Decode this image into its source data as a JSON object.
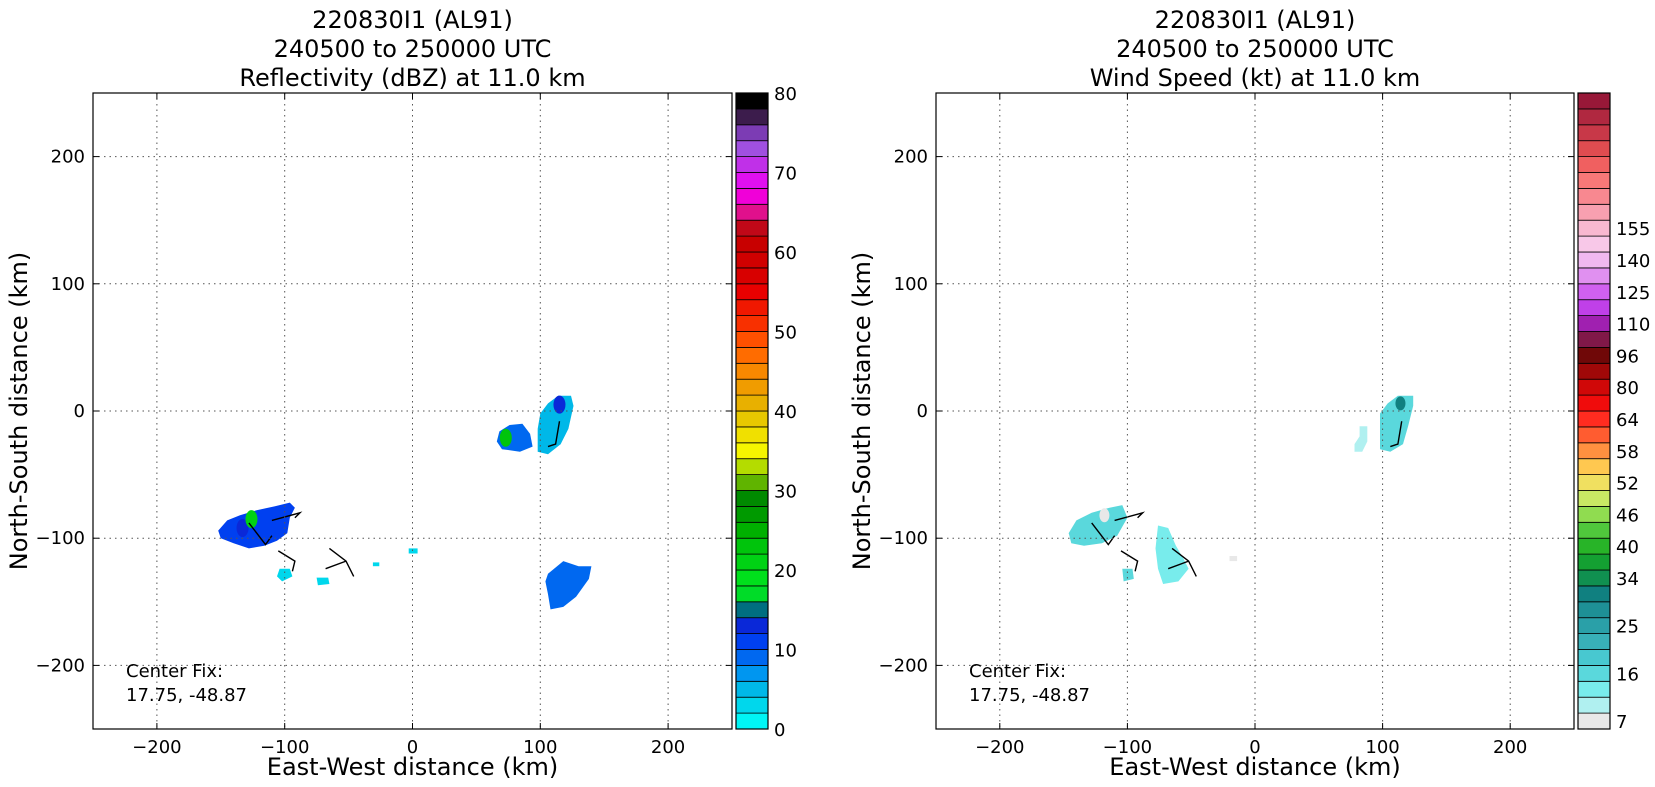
{
  "chart_data": [
    {
      "type": "heatmap",
      "title": [
        "220830I1 (AL91)",
        "240500 to 250000 UTC",
        "Reflectivity (dBZ) at 11.0 km"
      ],
      "xlabel": "East-West distance (km)",
      "ylabel": "North-South distance (km)",
      "xlim": [
        -250,
        250
      ],
      "ylim": [
        -250,
        250
      ],
      "x_ticks": [
        -200,
        -100,
        0,
        100,
        200
      ],
      "y_ticks": [
        -200,
        -100,
        0,
        100,
        200
      ],
      "x_tick_labels": [
        "−200",
        "−100",
        "0",
        "100",
        "200"
      ],
      "y_tick_labels": [
        "−200",
        "−100",
        "0",
        "100",
        "200"
      ],
      "grid": true,
      "annotation": [
        "Center Fix:",
        "17.75, -48.87"
      ],
      "colorbar": {
        "min": 0,
        "max": 80,
        "labels": [
          "0",
          "10",
          "20",
          "30",
          "40",
          "50",
          "60",
          "70",
          "80"
        ],
        "label_values": [
          0,
          10,
          20,
          30,
          40,
          50,
          60,
          70,
          80
        ],
        "colors": [
          "#00f5f5",
          "#00d7ec",
          "#00b8e8",
          "#0096f0",
          "#0068f0",
          "#0040f0",
          "#0a28d8",
          "#006e80",
          "#00dc28",
          "#00e01c",
          "#00d214",
          "#00c40c",
          "#00b000",
          "#009a00",
          "#008a00",
          "#60b400",
          "#b4dc00",
          "#f5f500",
          "#f0e000",
          "#e8c800",
          "#e8b000",
          "#f09c00",
          "#f88800",
          "#ff6c00",
          "#ff5000",
          "#f83000",
          "#f01800",
          "#e80000",
          "#d80000",
          "#d00000",
          "#c80000",
          "#c00818",
          "#e0108c",
          "#f000d8",
          "#e010f0",
          "#c030e8",
          "#a050e0",
          "#7c3cb4",
          "#3c1c4c",
          "#000000"
        ]
      },
      "data_regions": [
        {
          "name": "west cluster",
          "polygon": [
            [
              -152,
              -94
            ],
            [
              -145,
              -86
            ],
            [
              -135,
              -82
            ],
            [
              -122,
              -78
            ],
            [
              -108,
              -75
            ],
            [
              -96,
              -72
            ],
            [
              -92,
              -76
            ],
            [
              -96,
              -84
            ],
            [
              -98,
              -96
            ],
            [
              -106,
              -102
            ],
            [
              -116,
              -106
            ],
            [
              -128,
              -108
            ],
            [
              -140,
              -104
            ],
            [
              -150,
              -100
            ]
          ],
          "fill_dbz": 10,
          "core": [
            [
              -133,
              -92,
              13
            ],
            [
              -126,
              -85,
              20
            ]
          ]
        },
        {
          "name": "west cluster tail",
          "polygon": [
            [
              -104,
              -124
            ],
            [
              -96,
              -124
            ],
            [
              -94,
              -130
            ],
            [
              -102,
              -134
            ],
            [
              -106,
              -130
            ]
          ],
          "fill_dbz": 2
        },
        {
          "name": "scattered echo",
          "polygon": [
            [
              -75,
              -131
            ],
            [
              -66,
              -131
            ],
            [
              -65,
              -136
            ],
            [
              -74,
              -137
            ]
          ],
          "fill_dbz": 2
        },
        {
          "name": "scattered echo 2",
          "polygon": [
            [
              -31,
              -119
            ],
            [
              -26,
              -119
            ],
            [
              -26,
              -122
            ],
            [
              -31,
              -122
            ]
          ],
          "fill_dbz": 2
        },
        {
          "name": "scattered echo 3",
          "polygon": [
            [
              -3,
              -108
            ],
            [
              4,
              -108
            ],
            [
              4,
              -112
            ],
            [
              -3,
              -112
            ]
          ],
          "fill_dbz": 2
        },
        {
          "name": "central-north cluster",
          "polygon": [
            [
              68,
              -16
            ],
            [
              76,
              -11
            ],
            [
              86,
              -10
            ],
            [
              92,
              -18
            ],
            [
              94,
              -28
            ],
            [
              84,
              -32
            ],
            [
              70,
              -30
            ],
            [
              66,
              -24
            ]
          ],
          "fill_dbz": 8,
          "core": [
            [
              73,
              -21,
              22
            ]
          ]
        },
        {
          "name": "north-east cluster",
          "polygon": [
            [
              100,
              -2
            ],
            [
              106,
              6
            ],
            [
              114,
              12
            ],
            [
              124,
              12
            ],
            [
              126,
              4
            ],
            [
              122,
              -14
            ],
            [
              116,
              -26
            ],
            [
              106,
              -34
            ],
            [
              98,
              -32
            ],
            [
              98,
              -14
            ]
          ],
          "fill_dbz": 4,
          "core": [
            [
              115,
              5,
              12
            ]
          ]
        },
        {
          "name": "south-east cluster",
          "polygon": [
            [
              106,
              -128
            ],
            [
              118,
              -118
            ],
            [
              130,
              -122
            ],
            [
              140,
              -122
            ],
            [
              138,
              -132
            ],
            [
              128,
              -146
            ],
            [
              118,
              -154
            ],
            [
              108,
              -156
            ],
            [
              106,
              -144
            ],
            [
              104,
              -134
            ]
          ],
          "fill_dbz": 8
        }
      ]
    },
    {
      "type": "heatmap",
      "title": [
        "220830I1 (AL91)",
        "240500 to 250000 UTC",
        "Wind Speed (kt) at 11.0 km"
      ],
      "xlabel": "East-West distance (km)",
      "ylabel": "North-South distance (km)",
      "xlim": [
        -250,
        250
      ],
      "ylim": [
        -250,
        250
      ],
      "x_ticks": [
        -200,
        -100,
        0,
        100,
        200
      ],
      "y_ticks": [
        -200,
        -100,
        0,
        100,
        200
      ],
      "x_tick_labels": [
        "−200",
        "−100",
        "0",
        "100",
        "200"
      ],
      "y_tick_labels": [
        "−200",
        "−100",
        "0",
        "100",
        "200"
      ],
      "grid": true,
      "annotation": [
        "Center Fix:",
        "17.75, -48.87"
      ],
      "colorbar": {
        "min": 0,
        "max": 37,
        "labels": [
          "7",
          "16",
          "25",
          "34",
          "40",
          "46",
          "52",
          "58",
          "64",
          "80",
          "96",
          "110",
          "125",
          "140",
          "155"
        ],
        "label_values": [
          0.5,
          3.5,
          6.5,
          9.5,
          11.5,
          13.5,
          15.5,
          17.5,
          19.5,
          21.5,
          23.5,
          25.5,
          27.5,
          29.5,
          31.5
        ],
        "colors": [
          "#e8e8e8",
          "#b0f0f0",
          "#78ecec",
          "#5ad8dc",
          "#48c8d0",
          "#38b0b8",
          "#2aa0a8",
          "#1e9096",
          "#108080",
          "#109050",
          "#14a032",
          "#28b428",
          "#50c83c",
          "#90dc50",
          "#c8e864",
          "#f0e060",
          "#ffc850",
          "#ff9040",
          "#ff5c30",
          "#ff2c20",
          "#f00c0c",
          "#d00808",
          "#a00808",
          "#700808",
          "#801848",
          "#a020b0",
          "#c040e8",
          "#d060f0",
          "#e090f0",
          "#f0b8f0",
          "#f8c8e8",
          "#f8b8d0",
          "#f8a0b0",
          "#f88890",
          "#f87878",
          "#f06060",
          "#e04c50",
          "#c83848",
          "#b02840",
          "#981838"
        ]
      },
      "data_regions": [
        {
          "name": "west cluster",
          "polygon": [
            [
              -146,
              -96
            ],
            [
              -140,
              -86
            ],
            [
              -128,
              -80
            ],
            [
              -114,
              -76
            ],
            [
              -104,
              -74
            ],
            [
              -100,
              -84
            ],
            [
              -108,
              -98
            ],
            [
              -120,
              -104
            ],
            [
              -134,
              -106
            ],
            [
              -144,
              -104
            ]
          ],
          "fill_kt": 3,
          "core": [
            [
              -118,
              -82,
              0
            ]
          ]
        },
        {
          "name": "west cluster tail",
          "polygon": [
            [
              -104,
              -124
            ],
            [
              -96,
              -124
            ],
            [
              -95,
              -132
            ],
            [
              -103,
              -134
            ]
          ],
          "fill_kt": 3
        },
        {
          "name": "middle cluster",
          "polygon": [
            [
              -76,
              -90
            ],
            [
              -68,
              -92
            ],
            [
              -62,
              -106
            ],
            [
              -56,
              -116
            ],
            [
              -52,
              -124
            ],
            [
              -60,
              -134
            ],
            [
              -72,
              -136
            ],
            [
              -76,
              -124
            ],
            [
              -78,
              -108
            ]
          ],
          "fill_kt": 2
        },
        {
          "name": "scattered echo",
          "polygon": [
            [
              -20,
              -114
            ],
            [
              -14,
              -114
            ],
            [
              -14,
              -118
            ],
            [
              -20,
              -118
            ]
          ],
          "fill_kt": 0
        },
        {
          "name": "central-north echo",
          "polygon": [
            [
              82,
              -12
            ],
            [
              88,
              -12
            ],
            [
              88,
              -24
            ],
            [
              84,
              -32
            ],
            [
              78,
              -32
            ],
            [
              78,
              -26
            ],
            [
              82,
              -20
            ]
          ],
          "fill_kt": 1
        },
        {
          "name": "north-east cluster",
          "polygon": [
            [
              98,
              -2
            ],
            [
              104,
              6
            ],
            [
              112,
              12
            ],
            [
              124,
              12
            ],
            [
              124,
              4
            ],
            [
              120,
              -12
            ],
            [
              116,
              -26
            ],
            [
              106,
              -32
            ],
            [
              98,
              -30
            ],
            [
              98,
              -14
            ]
          ],
          "fill_kt": 3,
          "core": [
            [
              114,
              6,
              8
            ]
          ]
        }
      ]
    }
  ]
}
